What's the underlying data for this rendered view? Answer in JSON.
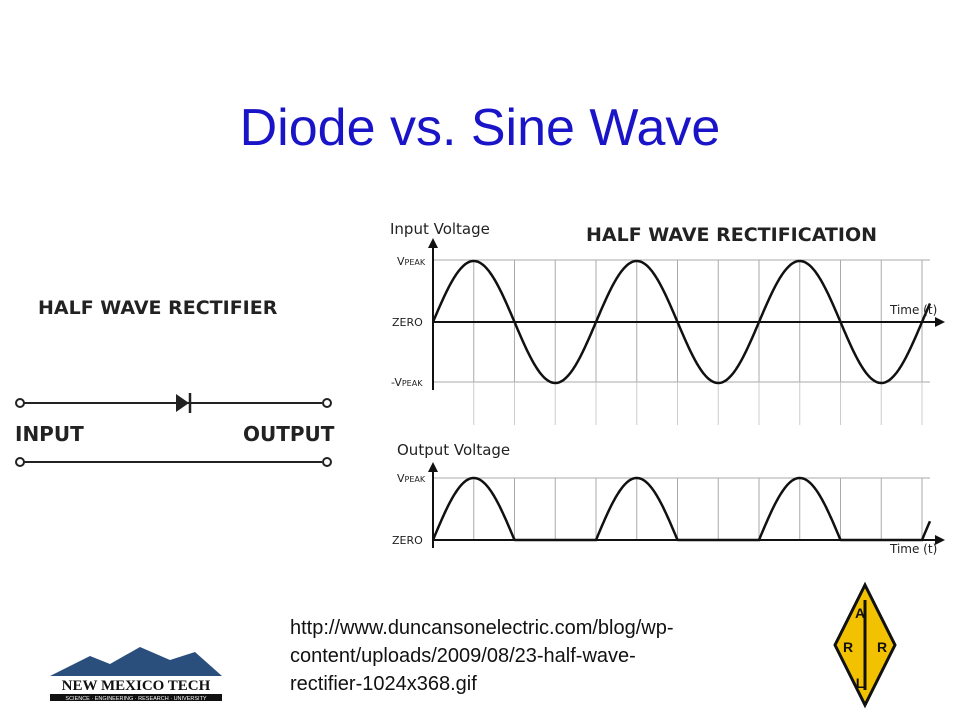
{
  "slide": {
    "title": "Diode vs. Sine Wave",
    "left_diagram": {
      "title": "HALF WAVE RECTIFIER",
      "input_label": "INPUT",
      "output_label": "OUTPUT"
    },
    "right_diagram": {
      "title": "HALF WAVE RECTIFICATION",
      "input_panel": {
        "axis_title": "Input Voltage",
        "peak": {
          "main": "V",
          "sub": "PEAK"
        },
        "zero": "ZERO",
        "neg_peak": {
          "main": "-V",
          "sub": "PEAK"
        },
        "time_label": "Time (t)"
      },
      "output_panel": {
        "axis_title": "Output Voltage",
        "peak": {
          "main": "V",
          "sub": "PEAK"
        },
        "zero": "ZERO",
        "time_label": "Time (t)"
      }
    },
    "source_url_lines": [
      "http://www.duncansonelectric.com/blog/wp-",
      "content/uploads/2009/08/23-half-wave-",
      "rectifier-1024x368.gif"
    ],
    "logo": {
      "name": "NEW MEXICO TECH",
      "tagline": "SCIENCE · ENGINEERING · RESEARCH · UNIVERSITY"
    },
    "arrl_logo": {
      "letters": [
        "A",
        "R",
        "R",
        "L"
      ]
    }
  }
}
